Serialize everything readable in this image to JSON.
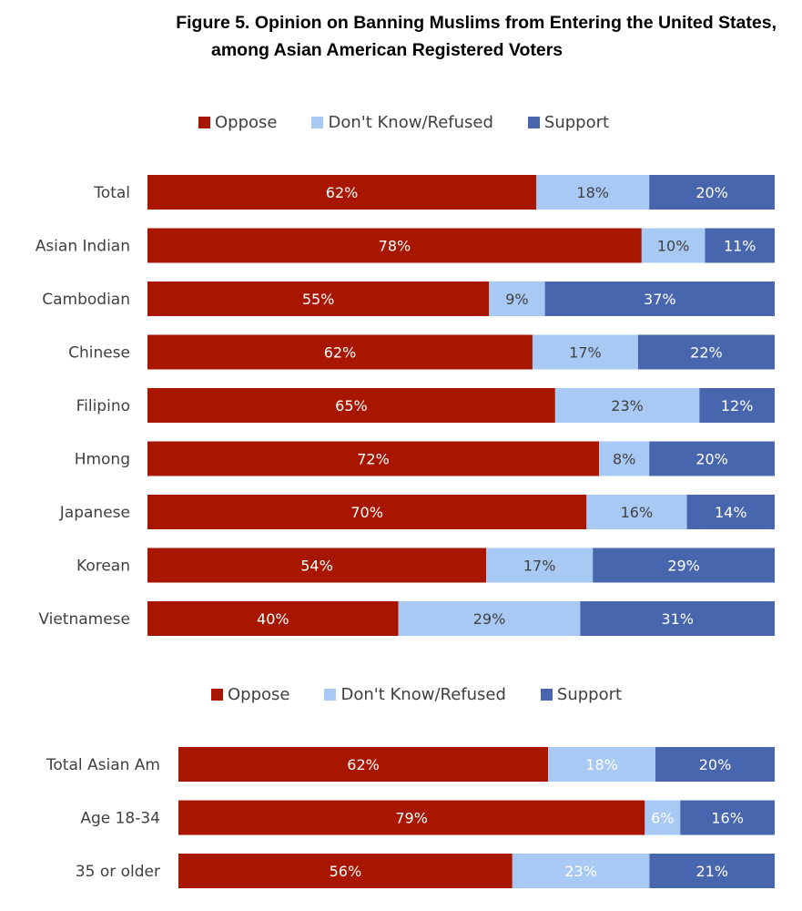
{
  "title_line1": "Figure 5. Opinion on Banning Muslims from Entering the United States,",
  "title_line2": "among Asian American Registered Voters",
  "colors": {
    "oppose": "#A91600",
    "dont_know": "#A9C9F5",
    "support": "#4866AD",
    "label_dark": "#404040",
    "label_light": "#ffffff"
  },
  "legend": [
    {
      "key": "oppose",
      "label": "Oppose"
    },
    {
      "key": "dont_know",
      "label": "Don't Know/Refused"
    },
    {
      "key": "support",
      "label": "Support"
    }
  ],
  "chart_data": [
    {
      "type": "bar",
      "orientation": "horizontal",
      "stacked": true,
      "title": "Figure 5. Opinion on Banning Muslims from Entering the United States, among Asian American Registered Voters",
      "legend_position": "top",
      "xlim": [
        0,
        100
      ],
      "unit": "%",
      "categories": [
        "Total",
        "Asian Indian",
        "Cambodian",
        "Chinese",
        "Filipino",
        "Hmong",
        "Japanese",
        "Korean",
        "Vietnamese"
      ],
      "series": [
        {
          "name": "Oppose",
          "key": "oppose",
          "values": [
            62,
            78,
            55,
            62,
            65,
            72,
            70,
            54,
            40
          ]
        },
        {
          "name": "Don't Know/Refused",
          "key": "dont_know",
          "values": [
            18,
            10,
            9,
            17,
            23,
            8,
            16,
            17,
            29
          ]
        },
        {
          "name": "Support",
          "key": "support",
          "values": [
            20,
            11,
            37,
            22,
            12,
            20,
            14,
            29,
            31
          ]
        }
      ],
      "dont_know_label_color": "dark"
    },
    {
      "type": "bar",
      "orientation": "horizontal",
      "stacked": true,
      "legend_position": "top",
      "xlim": [
        0,
        100
      ],
      "unit": "%",
      "categories": [
        "Total Asian Am",
        "Age 18-34",
        "35 or older"
      ],
      "series": [
        {
          "name": "Oppose",
          "key": "oppose",
          "values": [
            62,
            79,
            56
          ]
        },
        {
          "name": "Don't Know/Refused",
          "key": "dont_know",
          "values": [
            18,
            6,
            23
          ]
        },
        {
          "name": "Support",
          "key": "support",
          "values": [
            20,
            16,
            21
          ]
        }
      ],
      "dont_know_label_color": "light"
    }
  ]
}
